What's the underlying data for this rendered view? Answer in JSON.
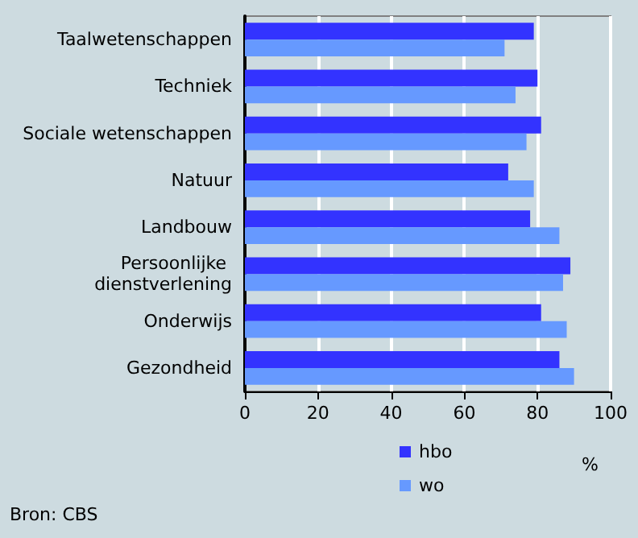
{
  "chart_data": {
    "type": "bar",
    "orientation": "horizontal",
    "categories": [
      "Taalwetenschappen",
      "Techniek",
      "Sociale wetenschappen",
      "Natuur",
      "Landbouw",
      "Persoonlijke dienstverlening",
      "Onderwijs",
      "Gezondheid"
    ],
    "series": [
      {
        "name": "hbo",
        "color": "#3333ff",
        "values": [
          79,
          80,
          81,
          72,
          78,
          89,
          81,
          86
        ]
      },
      {
        "name": "wo",
        "color": "#6699ff",
        "values": [
          71,
          74,
          77,
          79,
          86,
          87,
          88,
          90
        ]
      }
    ],
    "xlim": [
      0,
      100
    ],
    "xticks": [
      0,
      20,
      40,
      60,
      80,
      100
    ],
    "xlabel": "%",
    "grid": "x",
    "legend": "bottom",
    "annotations": [
      "Bron: CBS"
    ]
  }
}
